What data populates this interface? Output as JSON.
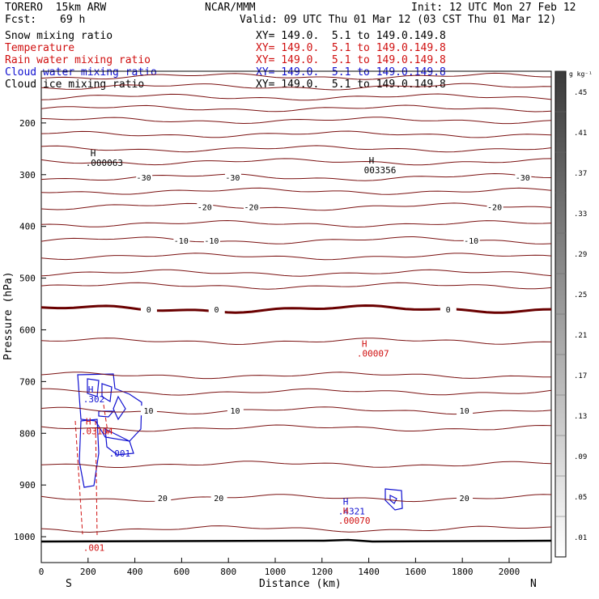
{
  "header": {
    "model": "TORERO  15km ARW",
    "center": "NCAR/MMM",
    "init": "Init: 12 UTC Mon 27 Feb 12",
    "fcst_label": "Fcst:",
    "fcst_value": "69 h",
    "valid": "Valid: 09 UTC Thu 01 Mar 12 (03 CST Thu 01 Mar 12)"
  },
  "fields": [
    {
      "name": "Snow mixing ratio",
      "xy": "XY= 149.0.  5.1 to 149.0.149.8",
      "color": "#000000"
    },
    {
      "name": "Temperature",
      "xy": "XY= 149.0.  5.1 to 149.0.149.8",
      "color": "#d01010"
    },
    {
      "name": "Rain water mixing ratio",
      "xy": "XY= 149.0.  5.1 to 149.0.149.8",
      "color": "#d01010"
    },
    {
      "name": "Cloud water mixing ratio",
      "xy": "XY= 149.0.  5.1 to 149.0.149.8",
      "color": "#1010d0"
    },
    {
      "name": "Cloud ice mixing ratio",
      "xy": "XY= 149.0.  5.1 to 149.0.149.8",
      "color": "#000000"
    }
  ],
  "chart_data": {
    "type": "cross-section contour",
    "xlabel": "Distance (km)",
    "ylabel": "Pressure (hPa)",
    "xlim": [
      0,
      2180
    ],
    "ylim": [
      1050,
      100
    ],
    "x_ticks": [
      "0",
      "200",
      "400",
      "600",
      "800",
      "1000",
      "1200",
      "1400",
      "1600",
      "1800",
      "2000"
    ],
    "y_ticks": [
      "200",
      "300",
      "400",
      "500",
      "600",
      "700",
      "800",
      "900",
      "1000"
    ],
    "endpoints": {
      "left": "S",
      "right": "N"
    },
    "colorbar": {
      "unit": "g kg⁻¹",
      "levels": [
        ".01",
        ".05",
        ".09",
        ".13",
        ".17",
        ".21",
        ".25",
        ".29",
        ".33",
        ".37",
        ".41",
        ".45"
      ]
    },
    "temperature_isotherms": [
      {
        "label": "-30",
        "p": 305,
        "label_x": [
          440,
          820,
          2060
        ]
      },
      {
        "label": "-20",
        "p": 362,
        "label_x": [
          700,
          900,
          1940
        ]
      },
      {
        "label": "-10",
        "p": 427,
        "label_x": [
          600,
          730,
          1840
        ]
      },
      {
        "label": "0",
        "p": 560,
        "label_x": [
          460,
          750,
          1740
        ]
      },
      {
        "label": "10",
        "p": 756,
        "label_x": [
          460,
          830,
          1810
        ]
      },
      {
        "label": "20",
        "p": 925,
        "label_x": [
          520,
          760,
          1810
        ]
      }
    ],
    "extrema": [
      {
        "field": "snow",
        "marker": "H",
        "value": ".000063",
        "x": 210,
        "p": 283
      },
      {
        "field": "cloud ice",
        "marker": "H",
        "value": "003356",
        "x": 1400,
        "p": 297
      },
      {
        "field": "temperature",
        "marker": "H",
        "value": ".00007",
        "x": 1370,
        "p": 652
      },
      {
        "field": "cloud water",
        "marker": "H",
        "value": ".302",
        "x": 200,
        "p": 740
      },
      {
        "field": "rain water",
        "marker": "H",
        "value": ".03104",
        "x": 190,
        "p": 802
      },
      {
        "field": "cloud water",
        "marker": "",
        "value": ".001",
        "x": 310,
        "p": 845
      },
      {
        "field": "cloud water",
        "marker": "H",
        "value": ".4321",
        "x": 1290,
        "p": 957
      },
      {
        "field": "rain water",
        "marker": "H",
        "value": ".00070",
        "x": 1290,
        "p": 975
      },
      {
        "field": "rain water",
        "marker": "",
        "value": ".001",
        "x": 200,
        "p": 1027
      }
    ]
  }
}
